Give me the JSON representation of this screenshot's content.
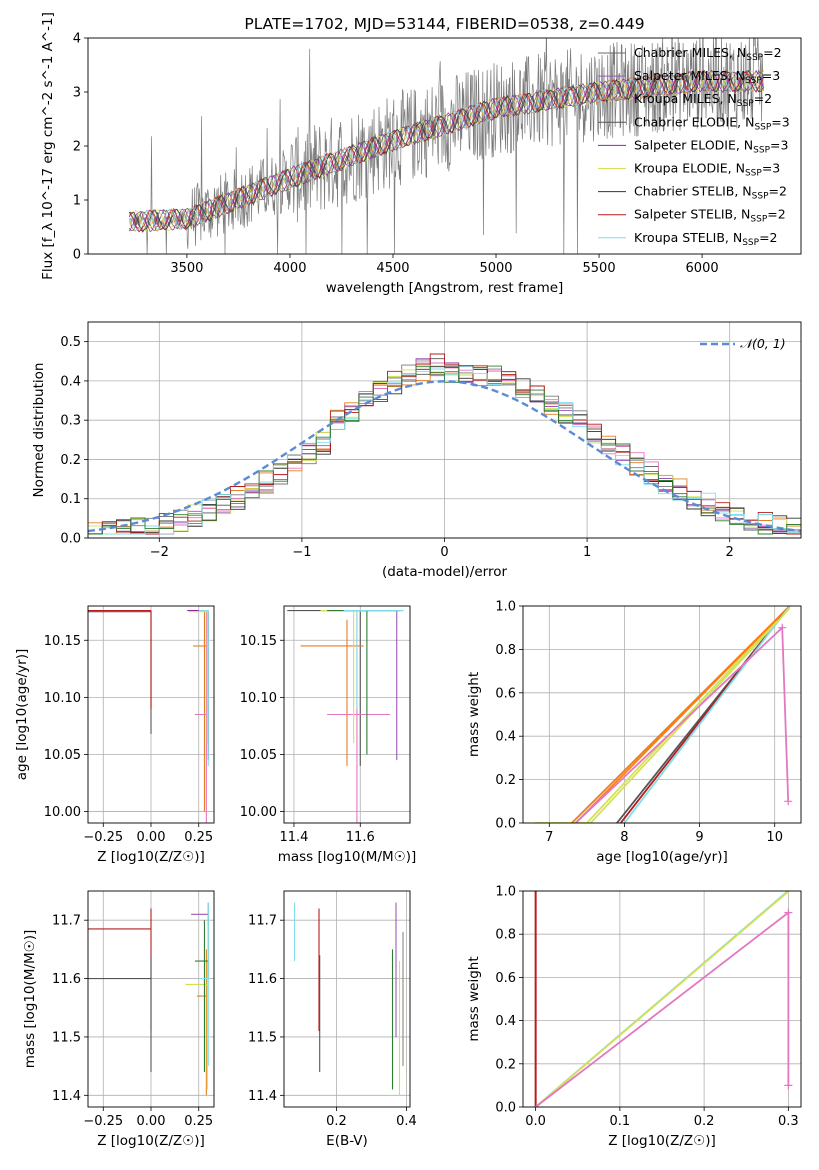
{
  "chart_data": [
    {
      "type": "line",
      "title": "PLATE=1702, MJD=53144, FIBERID=0538, z=0.449",
      "xlabel": "wavelength [Angstrom, rest frame]",
      "ylabel": "Flux [f_λ 10^-17 erg cm^-2 s^-1 A^-1]",
      "xlim": [
        3020,
        6480
      ],
      "ylim": [
        0,
        4
      ],
      "xticks": [
        3500,
        4000,
        4500,
        5000,
        5500,
        6000
      ],
      "yticks": [
        0,
        1,
        2,
        3,
        4
      ],
      "legend_position": "upper-right",
      "legend": [
        {
          "name": "Chabrier MILES, N_SSP=2",
          "color": "#6a6a6a"
        },
        {
          "name": "Salpeter MILES, N_SSP=3",
          "color": "#9b59b6"
        },
        {
          "name": "Kroupa MILES, N_SSP=2",
          "color": "#e67e22"
        },
        {
          "name": "Chabrier ELODIE, N_SSP=3",
          "color": "#555555"
        },
        {
          "name": "Salpeter ELODIE, N_SSP=3",
          "color": "#8e24aa"
        },
        {
          "name": "Kroupa ELODIE, N_SSP=3",
          "color": "#d4e157"
        },
        {
          "name": "Chabrier STELIB, N_SSP=2",
          "color": "#333333"
        },
        {
          "name": "Salpeter STELIB, N_SSP=2",
          "color": "#b71c1c"
        },
        {
          "name": "Kroupa STELIB, N_SSP=2",
          "color": "#80deea"
        }
      ],
      "continuum": {
        "x": [
          3220,
          3500,
          4000,
          4500,
          5000,
          5500,
          6000,
          6300
        ],
        "y": [
          0.6,
          0.65,
          1.4,
          2.1,
          2.7,
          3.0,
          3.2,
          3.2
        ]
      }
    },
    {
      "type": "line",
      "xlabel": "(data-model)/error",
      "ylabel": "Normed distribution",
      "xlim": [
        -2.5,
        2.5
      ],
      "ylim": [
        0,
        0.55
      ],
      "xticks": [
        -2,
        -1,
        0,
        1,
        2
      ],
      "yticks": [
        0.0,
        0.1,
        0.2,
        0.3,
        0.4,
        0.5
      ],
      "legend_position": "upper-right",
      "legend": [
        {
          "name": "𝒩(0, 1)",
          "color": "#5b8bd6"
        }
      ]
    },
    {
      "type": "line",
      "xlabel": "Z [log10(Z/Z☉)]",
      "ylabel": "age  [log10(age/yr)]",
      "xlim": [
        -0.33,
        0.33
      ],
      "ylim": [
        9.99,
        10.18
      ],
      "xticks": [
        -0.25,
        0.0,
        0.25
      ],
      "xticklabels": [
        "−0.25",
        "0.00",
        "0.25"
      ],
      "yticks": [
        10.0,
        10.05,
        10.1,
        10.15
      ],
      "yticklabels": [
        "10.00",
        "10.05",
        "10.10",
        "10.15"
      ]
    },
    {
      "type": "line",
      "xlabel": "mass [log10(M/M☉)]",
      "xlim": [
        11.37,
        11.75
      ],
      "ylim": [
        9.99,
        10.18
      ],
      "xticks": [
        11.4,
        11.6
      ],
      "xticklabels": [
        "11.4",
        "11.6"
      ],
      "yticks": [
        10.0,
        10.05,
        10.1,
        10.15
      ],
      "yticklabels": [
        "10.00",
        "10.05",
        "10.10",
        "10.15"
      ]
    },
    {
      "type": "line",
      "xlabel": "age  [log10(age/yr)]",
      "ylabel": "mass weight",
      "xlim": [
        6.65,
        10.35
      ],
      "ylim": [
        0,
        1.0
      ],
      "xticks": [
        7,
        8,
        9,
        10
      ],
      "yticks": [
        0.0,
        0.2,
        0.4,
        0.6,
        0.8,
        1.0
      ],
      "yticklabels": [
        "0.0",
        "0.2",
        "0.4",
        "0.6",
        "0.8",
        "1.0"
      ]
    },
    {
      "type": "line",
      "xlabel": "Z [log10(Z/Z☉)]",
      "ylabel": "mass [log10(M/M☉)]",
      "xlim": [
        -0.33,
        0.33
      ],
      "ylim": [
        11.38,
        11.75
      ],
      "xticks": [
        -0.25,
        0.0,
        0.25
      ],
      "xticklabels": [
        "−0.25",
        "0.00",
        "0.25"
      ],
      "yticks": [
        11.4,
        11.5,
        11.6,
        11.7
      ],
      "yticklabels": [
        "11.4",
        "11.5",
        "11.6",
        "11.7"
      ]
    },
    {
      "type": "line",
      "xlabel": "E(B-V)",
      "xlim": [
        0.05,
        0.41
      ],
      "ylim": [
        11.38,
        11.75
      ],
      "xticks": [
        0.2,
        0.4
      ],
      "xticklabels": [
        "0.2",
        "0.4"
      ],
      "yticks": [
        11.4,
        11.5,
        11.6,
        11.7
      ],
      "yticklabels": [
        "11.4",
        "11.5",
        "11.6",
        "11.7"
      ]
    },
    {
      "type": "line",
      "xlabel": "Z [log10(Z/Z☉)]",
      "ylabel": "mass weight",
      "xlim": [
        -0.015,
        0.315
      ],
      "ylim": [
        0,
        1.0
      ],
      "xticks": [
        0.0,
        0.1,
        0.2,
        0.3
      ],
      "xticklabels": [
        "0.0",
        "0.1",
        "0.2",
        "0.3"
      ],
      "yticks": [
        0.0,
        0.2,
        0.4,
        0.6,
        0.8,
        1.0
      ],
      "yticklabels": [
        "0.0",
        "0.2",
        "0.4",
        "0.6",
        "0.8",
        "1.0"
      ]
    }
  ],
  "colors": [
    "#888888",
    "#9b59b6",
    "#e67e22",
    "#555555",
    "#8e24aa",
    "#d4e157",
    "#333333",
    "#b71c1c",
    "#80deea",
    "#e377c2",
    "#5b8bd6",
    "#2e7d32",
    "#ff7f0e"
  ]
}
